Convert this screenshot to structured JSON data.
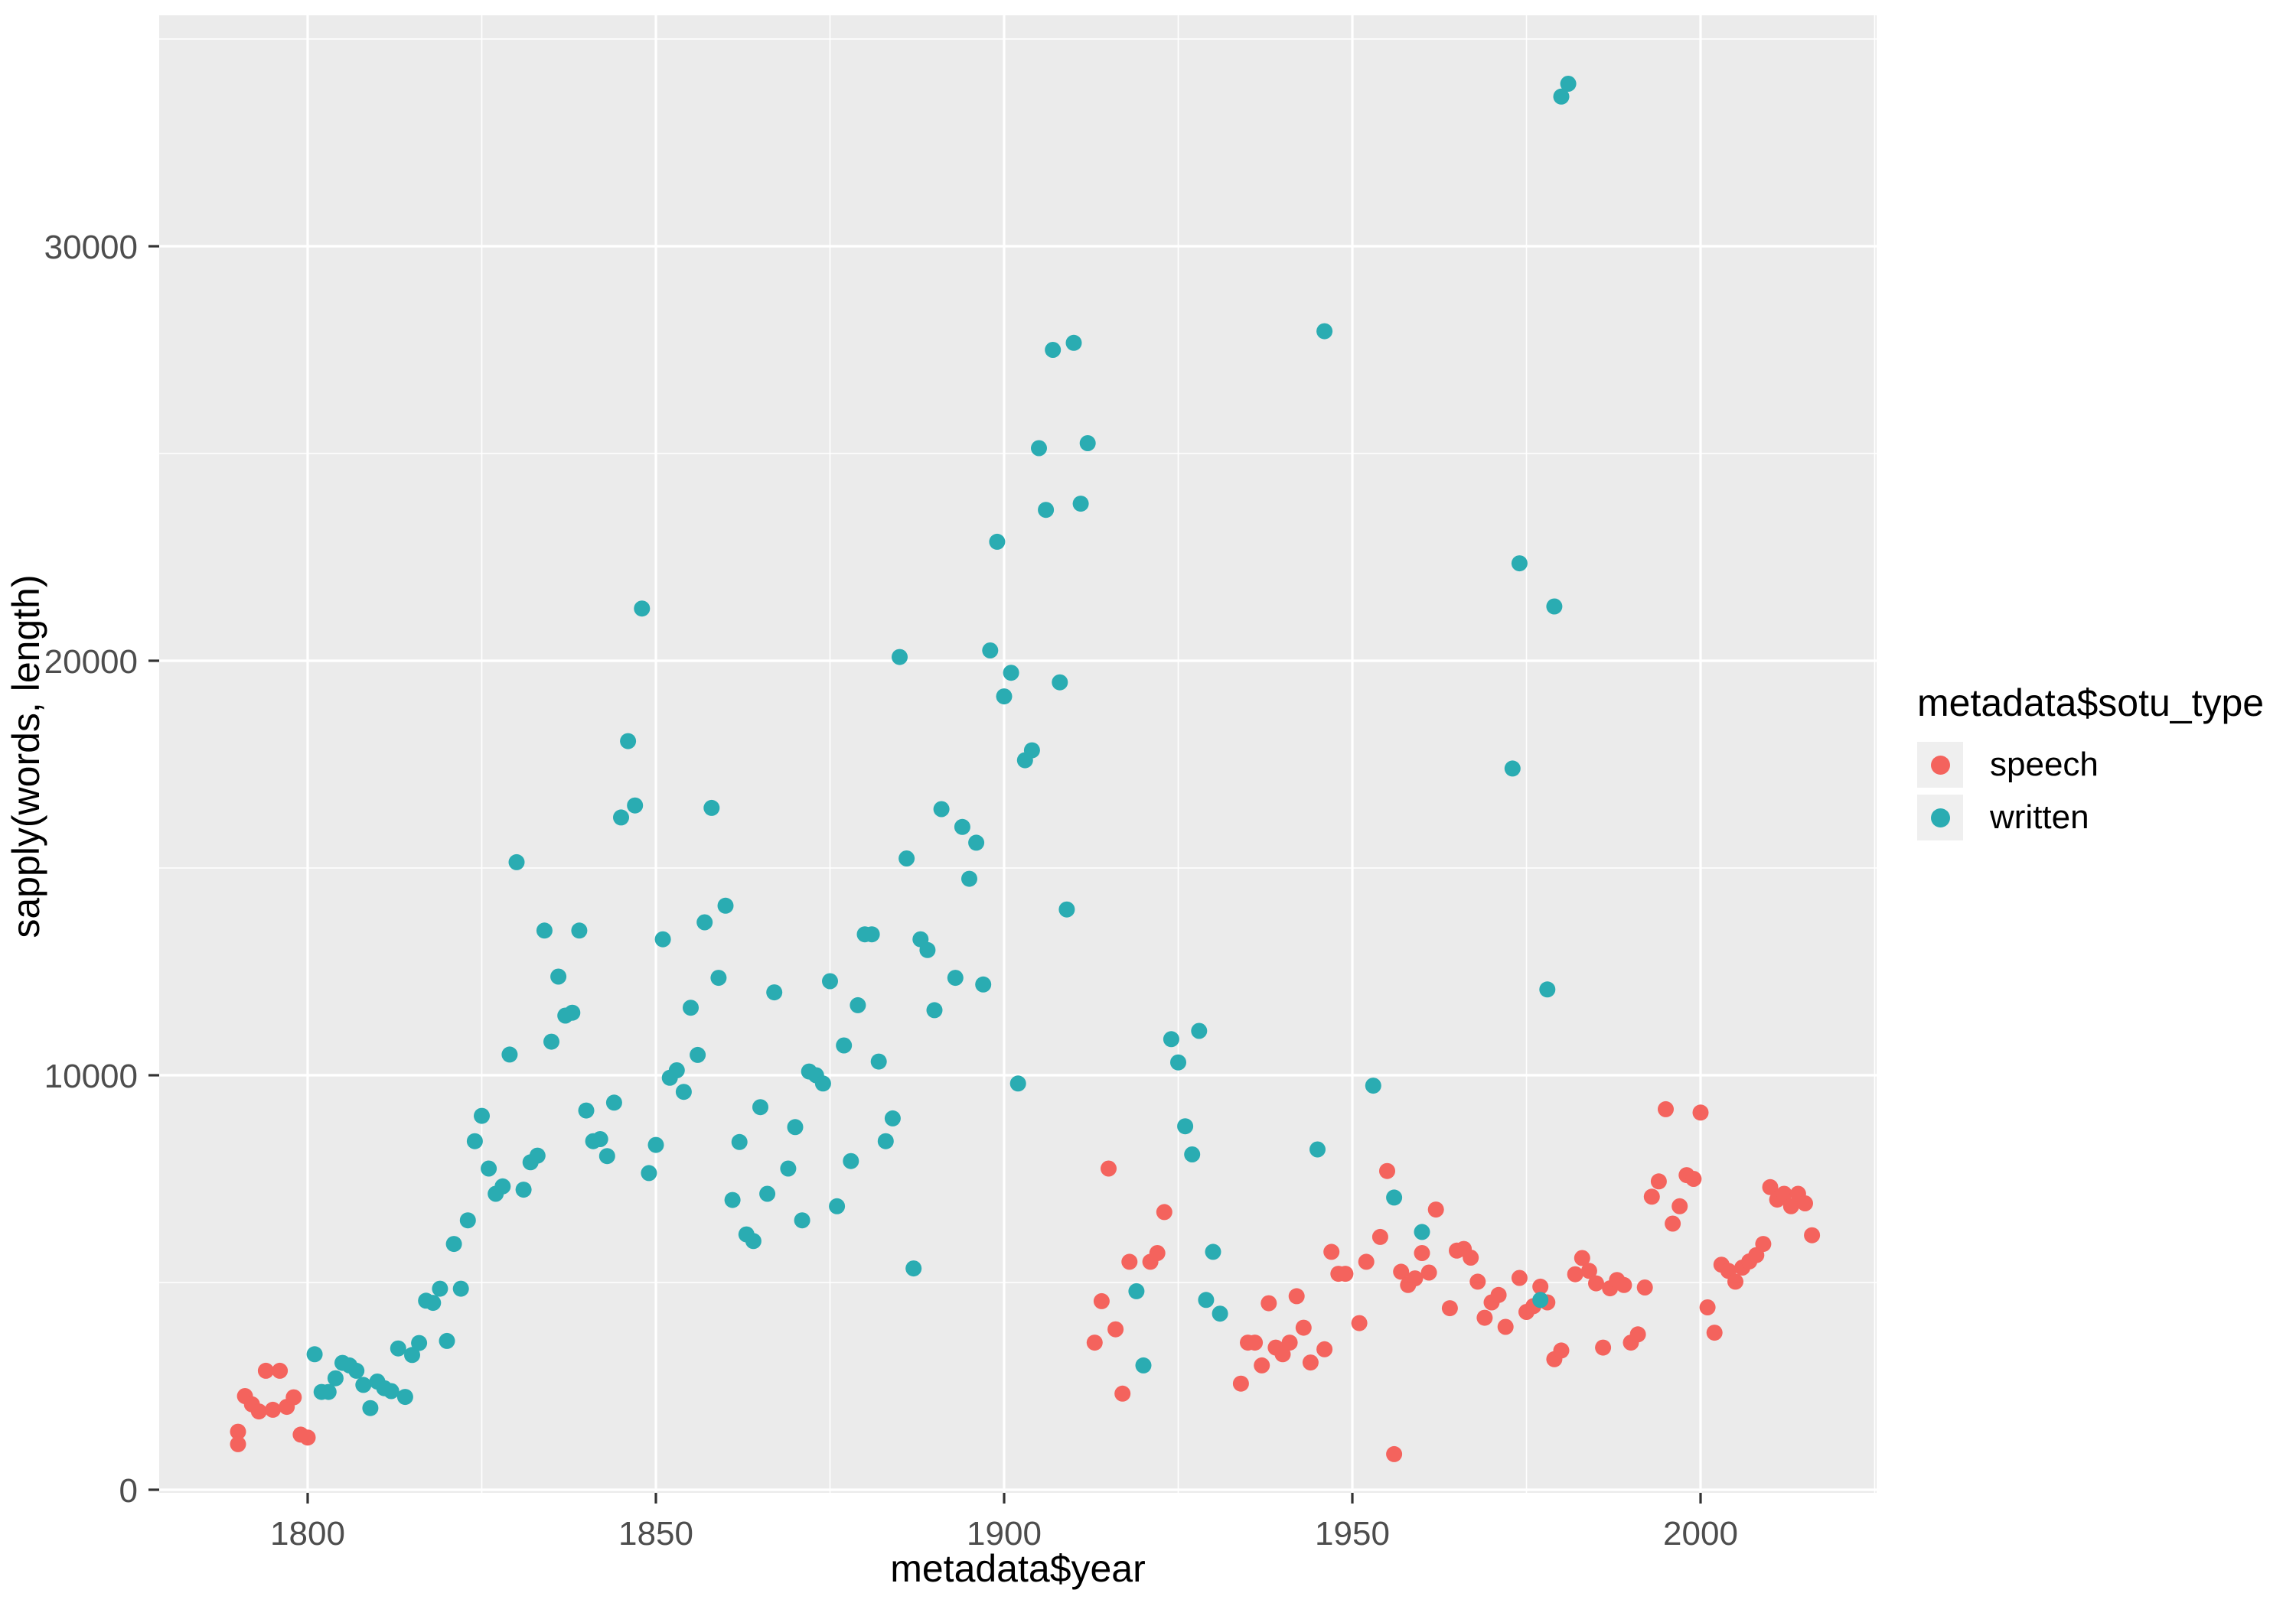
{
  "chart_data": {
    "type": "scatter",
    "xlabel": "metadata$year",
    "ylabel": "sapply(words, length)",
    "x_range": [
      1779,
      2023
    ],
    "y_range": [
      0,
      35600
    ],
    "x_ticks": [
      1800,
      1850,
      1900,
      1950,
      2000
    ],
    "x_minor": [
      1825,
      1875,
      1925,
      1975,
      2025
    ],
    "y_ticks": [
      0,
      10000,
      20000,
      30000
    ],
    "y_minor": [
      5000,
      15000,
      25000,
      35000
    ],
    "grid": "on",
    "panel_fill": "#EBEBEB",
    "grid_color": "#FFFFFF",
    "tick_label_color": "#4D4D4D",
    "legend": {
      "title": "metadata$sotu_type",
      "position": "right",
      "items": [
        {
          "label": "speech",
          "color": "#F4635D"
        },
        {
          "label": "written",
          "color": "#2AACB2"
        }
      ]
    },
    "series": [
      {
        "name": "speech",
        "color": "#F4635D",
        "points": [
          [
            1790,
            1400
          ],
          [
            1790,
            1100
          ],
          [
            1791,
            2260
          ],
          [
            1792,
            2060
          ],
          [
            1793,
            1890
          ],
          [
            1794,
            2870
          ],
          [
            1795,
            1930
          ],
          [
            1796,
            2870
          ],
          [
            1797,
            2000
          ],
          [
            1798,
            2230
          ],
          [
            1799,
            1330
          ],
          [
            1800,
            1260
          ],
          [
            1913,
            3550
          ],
          [
            1914,
            4550
          ],
          [
            1915,
            7750
          ],
          [
            1916,
            3870
          ],
          [
            1917,
            2320
          ],
          [
            1918,
            5500
          ],
          [
            1921,
            5500
          ],
          [
            1922,
            5710
          ],
          [
            1923,
            6700
          ],
          [
            1934,
            2560
          ],
          [
            1935,
            3550
          ],
          [
            1936,
            3550
          ],
          [
            1937,
            3000
          ],
          [
            1938,
            4500
          ],
          [
            1939,
            3430
          ],
          [
            1940,
            3270
          ],
          [
            1941,
            3550
          ],
          [
            1942,
            4670
          ],
          [
            1943,
            3910
          ],
          [
            1944,
            3070
          ],
          [
            1946,
            3390
          ],
          [
            1947,
            5740
          ],
          [
            1948,
            5210
          ],
          [
            1949,
            5210
          ],
          [
            1951,
            4020
          ],
          [
            1952,
            5500
          ],
          [
            1954,
            6100
          ],
          [
            1955,
            7690
          ],
          [
            1956,
            860
          ],
          [
            1957,
            5260
          ],
          [
            1958,
            4940
          ],
          [
            1959,
            5100
          ],
          [
            1960,
            5710
          ],
          [
            1961,
            5240
          ],
          [
            1962,
            6760
          ],
          [
            1964,
            4380
          ],
          [
            1965,
            5770
          ],
          [
            1966,
            5810
          ],
          [
            1967,
            5600
          ],
          [
            1968,
            5020
          ],
          [
            1969,
            4150
          ],
          [
            1970,
            4520
          ],
          [
            1971,
            4700
          ],
          [
            1972,
            3930
          ],
          [
            1974,
            5110
          ],
          [
            1975,
            4290
          ],
          [
            1976,
            4430
          ],
          [
            1977,
            4900
          ],
          [
            1978,
            4520
          ],
          [
            1979,
            3150
          ],
          [
            1980,
            3360
          ],
          [
            1982,
            5200
          ],
          [
            1983,
            5590
          ],
          [
            1984,
            5280
          ],
          [
            1985,
            4980
          ],
          [
            1986,
            3430
          ],
          [
            1987,
            4860
          ],
          [
            1988,
            5060
          ],
          [
            1989,
            4940
          ],
          [
            1990,
            3550
          ],
          [
            1991,
            3750
          ],
          [
            1992,
            4880
          ],
          [
            1993,
            7070
          ],
          [
            1994,
            7440
          ],
          [
            1995,
            9180
          ],
          [
            1996,
            6420
          ],
          [
            1997,
            6840
          ],
          [
            1998,
            7590
          ],
          [
            1999,
            7500
          ],
          [
            2000,
            9100
          ],
          [
            2001,
            4400
          ],
          [
            2002,
            3790
          ],
          [
            2003,
            5430
          ],
          [
            2004,
            5280
          ],
          [
            2005,
            5020
          ],
          [
            2006,
            5360
          ],
          [
            2007,
            5510
          ],
          [
            2008,
            5660
          ],
          [
            2009,
            5930
          ],
          [
            2010,
            7300
          ],
          [
            2011,
            7000
          ],
          [
            2012,
            7140
          ],
          [
            2013,
            6840
          ],
          [
            2014,
            7140
          ],
          [
            2015,
            6910
          ],
          [
            2016,
            6140
          ]
        ]
      },
      {
        "name": "written",
        "color": "#2AACB2",
        "points": [
          [
            1801,
            3270
          ],
          [
            1802,
            2360
          ],
          [
            1803,
            2360
          ],
          [
            1804,
            2690
          ],
          [
            1805,
            3060
          ],
          [
            1806,
            3000
          ],
          [
            1807,
            2870
          ],
          [
            1808,
            2530
          ],
          [
            1809,
            1970
          ],
          [
            1810,
            2610
          ],
          [
            1811,
            2450
          ],
          [
            1812,
            2380
          ],
          [
            1813,
            3410
          ],
          [
            1814,
            2240
          ],
          [
            1815,
            3250
          ],
          [
            1816,
            3540
          ],
          [
            1817,
            4560
          ],
          [
            1818,
            4510
          ],
          [
            1819,
            4850
          ],
          [
            1820,
            3590
          ],
          [
            1821,
            5930
          ],
          [
            1822,
            4850
          ],
          [
            1823,
            6500
          ],
          [
            1824,
            8410
          ],
          [
            1825,
            9020
          ],
          [
            1826,
            7750
          ],
          [
            1827,
            7140
          ],
          [
            1828,
            7320
          ],
          [
            1829,
            10500
          ],
          [
            1830,
            15140
          ],
          [
            1831,
            7240
          ],
          [
            1832,
            7900
          ],
          [
            1833,
            8060
          ],
          [
            1834,
            13490
          ],
          [
            1835,
            10810
          ],
          [
            1836,
            12380
          ],
          [
            1837,
            11440
          ],
          [
            1838,
            11510
          ],
          [
            1839,
            13490
          ],
          [
            1840,
            9150
          ],
          [
            1841,
            8410
          ],
          [
            1842,
            8460
          ],
          [
            1843,
            8050
          ],
          [
            1844,
            9340
          ],
          [
            1845,
            16220
          ],
          [
            1846,
            18060
          ],
          [
            1847,
            16510
          ],
          [
            1848,
            21260
          ],
          [
            1849,
            7640
          ],
          [
            1850,
            8320
          ],
          [
            1851,
            13280
          ],
          [
            1852,
            9940
          ],
          [
            1853,
            10120
          ],
          [
            1854,
            9600
          ],
          [
            1855,
            11630
          ],
          [
            1856,
            10490
          ],
          [
            1857,
            13690
          ],
          [
            1858,
            16450
          ],
          [
            1859,
            12350
          ],
          [
            1860,
            14090
          ],
          [
            1861,
            6990
          ],
          [
            1862,
            8390
          ],
          [
            1863,
            6160
          ],
          [
            1864,
            6000
          ],
          [
            1865,
            9230
          ],
          [
            1866,
            7140
          ],
          [
            1867,
            12000
          ],
          [
            1869,
            7750
          ],
          [
            1870,
            8750
          ],
          [
            1871,
            6500
          ],
          [
            1872,
            10090
          ],
          [
            1873,
            10000
          ],
          [
            1874,
            9800
          ],
          [
            1875,
            12270
          ],
          [
            1876,
            6840
          ],
          [
            1877,
            10720
          ],
          [
            1878,
            7930
          ],
          [
            1879,
            11690
          ],
          [
            1880,
            13400
          ],
          [
            1881,
            13400
          ],
          [
            1882,
            10330
          ],
          [
            1883,
            8410
          ],
          [
            1884,
            8960
          ],
          [
            1885,
            20090
          ],
          [
            1886,
            15230
          ],
          [
            1887,
            5340
          ],
          [
            1888,
            13280
          ],
          [
            1889,
            13020
          ],
          [
            1890,
            11570
          ],
          [
            1891,
            16420
          ],
          [
            1893,
            12350
          ],
          [
            1894,
            15990
          ],
          [
            1895,
            14740
          ],
          [
            1896,
            15610
          ],
          [
            1897,
            12190
          ],
          [
            1898,
            20250
          ],
          [
            1899,
            22870
          ],
          [
            1900,
            19140
          ],
          [
            1901,
            19710
          ],
          [
            1902,
            9800
          ],
          [
            1903,
            17600
          ],
          [
            1904,
            17840
          ],
          [
            1905,
            25130
          ],
          [
            1906,
            23640
          ],
          [
            1907,
            27500
          ],
          [
            1908,
            19480
          ],
          [
            1909,
            14000
          ],
          [
            1910,
            27670
          ],
          [
            1911,
            23790
          ],
          [
            1912,
            25250
          ],
          [
            1919,
            4790
          ],
          [
            1920,
            3000
          ],
          [
            1924,
            10870
          ],
          [
            1925,
            10310
          ],
          [
            1926,
            8770
          ],
          [
            1927,
            8090
          ],
          [
            1928,
            11070
          ],
          [
            1929,
            4580
          ],
          [
            1930,
            5740
          ],
          [
            1931,
            4250
          ],
          [
            1945,
            8210
          ],
          [
            1946,
            27950
          ],
          [
            1953,
            9750
          ],
          [
            1956,
            7050
          ],
          [
            1960,
            6220
          ],
          [
            1973,
            17400
          ],
          [
            1974,
            22350
          ],
          [
            1977,
            4580
          ],
          [
            1978,
            12070
          ],
          [
            1979,
            21310
          ],
          [
            1980,
            33610
          ],
          [
            1981,
            33920
          ]
        ]
      }
    ]
  }
}
